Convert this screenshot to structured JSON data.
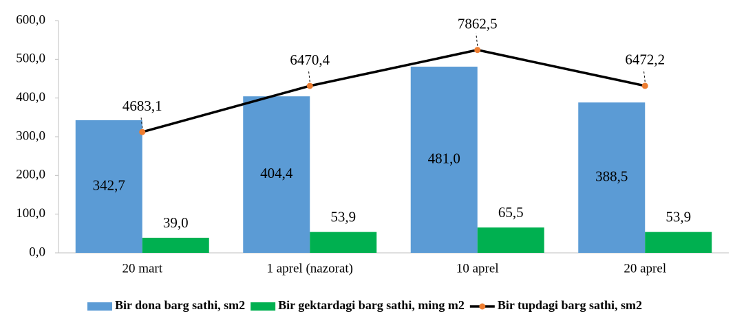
{
  "chart_data": {
    "type": "bar",
    "categories": [
      "20 mart",
      "1 aprel (nazorat)",
      "10 aprel",
      "20 aprel"
    ],
    "series": [
      {
        "name": "Bir dona barg sathi, sm2",
        "type": "bar",
        "color": "#5b9bd5",
        "values": [
          342.7,
          404.4,
          481.0,
          388.5
        ],
        "value_labels": [
          "342,7",
          "404,4",
          "481,0",
          "388,5"
        ]
      },
      {
        "name": "Bir gektardagi barg sathi, ming m2",
        "type": "bar",
        "color": "#00b050",
        "values": [
          39.0,
          53.9,
          65.5,
          53.9
        ],
        "value_labels": [
          "39,0",
          "53,9",
          "65,5",
          "53,9"
        ]
      },
      {
        "name": "Bir tupdagi barg sathi, sm2",
        "type": "line",
        "axis": "y2",
        "color": "#000000",
        "marker_color": "#ed7d31",
        "values": [
          4683.1,
          6470.4,
          7862.5,
          6472.2
        ],
        "value_labels": [
          "4683,1",
          "6470,4",
          "7862,5",
          "6472,2"
        ]
      }
    ],
    "ylim": [
      0,
      600
    ],
    "yticks": [
      {
        "value": 0,
        "label": "0,0"
      },
      {
        "value": 100,
        "label": "100,0"
      },
      {
        "value": 200,
        "label": "200,0"
      },
      {
        "value": 300,
        "label": "300,0"
      },
      {
        "value": 400,
        "label": "400,0"
      },
      {
        "value": 500,
        "label": "500,0"
      },
      {
        "value": 600,
        "label": "600,0"
      }
    ],
    "y2lim": [
      0,
      9000
    ],
    "legend": "bottom"
  }
}
